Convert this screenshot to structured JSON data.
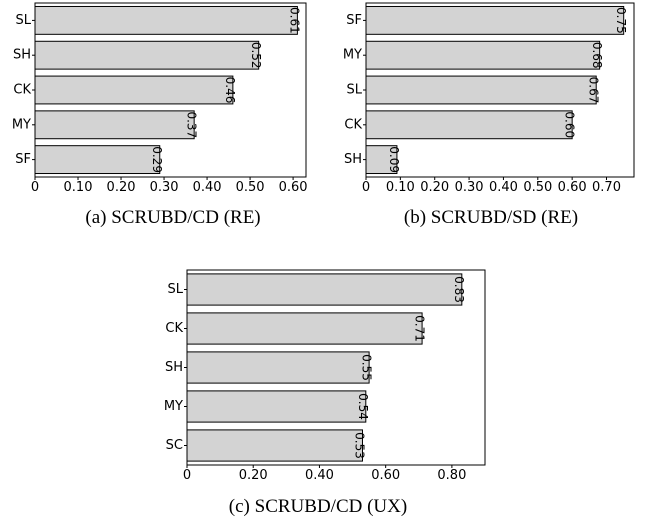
{
  "chart_data": [
    {
      "type": "bar",
      "orientation": "horizontal",
      "panel_label": "(a)",
      "caption_main": "SCRUBD/",
      "caption_sc": "CD",
      "caption_tail": " (RE)",
      "categories": [
        "SL",
        "SH",
        "CK",
        "MY",
        "SF"
      ],
      "values": [
        0.61,
        0.52,
        0.46,
        0.37,
        0.29
      ],
      "value_labels": [
        "0.61",
        "0.52",
        "0.46",
        "0.37",
        "0.29"
      ],
      "xticks": [
        0,
        0.1,
        0.2,
        0.3,
        0.4,
        0.5,
        0.6
      ],
      "xtick_labels": [
        "0",
        "0.10",
        "0.20",
        "0.30",
        "0.40",
        "0.50",
        "0.60"
      ],
      "xlim": [
        0,
        0.63
      ],
      "grid": false,
      "bar_color": "#d3d3d3",
      "edge_color": "#000000"
    },
    {
      "type": "bar",
      "orientation": "horizontal",
      "panel_label": "(b)",
      "caption_main": "SCRUBD/",
      "caption_sc": "SD",
      "caption_tail": " (RE)",
      "categories": [
        "SF",
        "MY",
        "SL",
        "CK",
        "SH"
      ],
      "values": [
        0.75,
        0.68,
        0.67,
        0.6,
        0.09
      ],
      "value_labels": [
        "0.75",
        "0.68",
        "0.67",
        "0.60",
        "0.09"
      ],
      "xticks": [
        0,
        0.1,
        0.2,
        0.3,
        0.4,
        0.5,
        0.6,
        0.7
      ],
      "xtick_labels": [
        "0",
        "0.10",
        "0.20",
        "0.30",
        "0.40",
        "0.50",
        "0.60",
        "0.70"
      ],
      "xlim": [
        0,
        0.78
      ],
      "grid": false,
      "bar_color": "#d3d3d3",
      "edge_color": "#000000"
    },
    {
      "type": "bar",
      "orientation": "horizontal",
      "panel_label": "(c)",
      "caption_main": "SCRUBD/",
      "caption_sc": "CD",
      "caption_tail": " (UX)",
      "categories": [
        "SL",
        "CK",
        "SH",
        "MY",
        "SC"
      ],
      "values": [
        0.83,
        0.71,
        0.55,
        0.54,
        0.53
      ],
      "value_labels": [
        "0.83",
        "0.71",
        "0.55",
        "0.54",
        "0.53"
      ],
      "xticks": [
        0,
        0.2,
        0.4,
        0.6,
        0.8
      ],
      "xtick_labels": [
        "0",
        "0.20",
        "0.40",
        "0.60",
        "0.80"
      ],
      "xlim": [
        0,
        0.9
      ],
      "grid": false,
      "bar_color": "#d3d3d3",
      "edge_color": "#000000"
    }
  ]
}
